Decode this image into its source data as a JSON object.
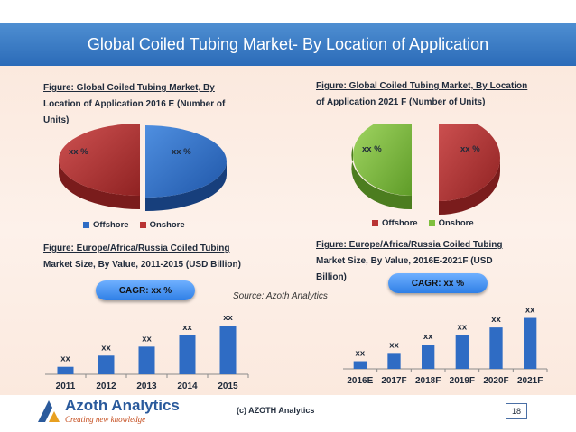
{
  "slide": {
    "title": "Global Coiled Tubing Market- By Location of Application",
    "source": "Source: Azoth Analytics",
    "footer": {
      "logo_name": "Azoth Analytics",
      "tagline": "Creating new knowledge",
      "copyright": "(c) AZOTH Analytics",
      "page_number": "18"
    }
  },
  "colors": {
    "offshore": "#2f6cc4",
    "onshore_left": "#b93333",
    "onshore_right": "#7fbf3e",
    "bar": "#2f6cc4",
    "banner": "#3a7ac4"
  },
  "panels": {
    "pie_left": {
      "caption_line1": "Figure:   Global   Coiled   Tubing   Market,   By",
      "caption_line2": "Location  of  Application  2016  E  (Number  of",
      "caption_line3": "Units)",
      "legend": [
        "Offshore",
        "Onshore"
      ]
    },
    "pie_right": {
      "caption_line1": "Figure: Global Coiled Tubing Market, By Location",
      "caption_line2": "of Application 2021 F (Number of Units)",
      "legend": [
        "Offshore",
        "Onshore"
      ]
    },
    "bar_left": {
      "caption_line1": "Figure:   Europe/Africa/Russia   Coiled   Tubing",
      "caption_line2": "Market Size, By Value, 2011-2015 (USD Billion)",
      "cagr": "CAGR: xx %"
    },
    "bar_right": {
      "caption_line1": "Figure:   Europe/Africa/Russia   Coiled   Tubing",
      "caption_line2": "Market   Size,   By   Value,   2016E-2021F   (USD",
      "caption_line3": "Billion)",
      "cagr": "CAGR: xx %"
    }
  },
  "chart_data": [
    {
      "type": "pie",
      "categories": [
        "Offshore",
        "Onshore"
      ],
      "values": [
        50,
        50
      ],
      "data_labels": [
        "xx %",
        "xx %"
      ]
    },
    {
      "type": "pie",
      "categories": [
        "Offshore",
        "Onshore"
      ],
      "values": [
        50,
        50
      ],
      "data_labels": [
        "xx %",
        "xx %"
      ]
    },
    {
      "type": "bar",
      "categories": [
        "2011",
        "2012",
        "2013",
        "2014",
        "2015"
      ],
      "values": [
        1,
        2.5,
        3.7,
        5.2,
        6.5
      ],
      "data_labels": [
        "xx",
        "xx",
        "xx",
        "xx",
        "xx"
      ],
      "ylim": [
        0,
        7
      ]
    },
    {
      "type": "bar",
      "categories": [
        "2016E",
        "2017F",
        "2018F",
        "2019F",
        "2020F",
        "2021F"
      ],
      "values": [
        1.2,
        2.5,
        3.8,
        5.3,
        6.5,
        8
      ],
      "data_labels": [
        "xx",
        "xx",
        "xx",
        "xx",
        "xx",
        "xx"
      ],
      "ylim": [
        0,
        8.5
      ]
    }
  ]
}
